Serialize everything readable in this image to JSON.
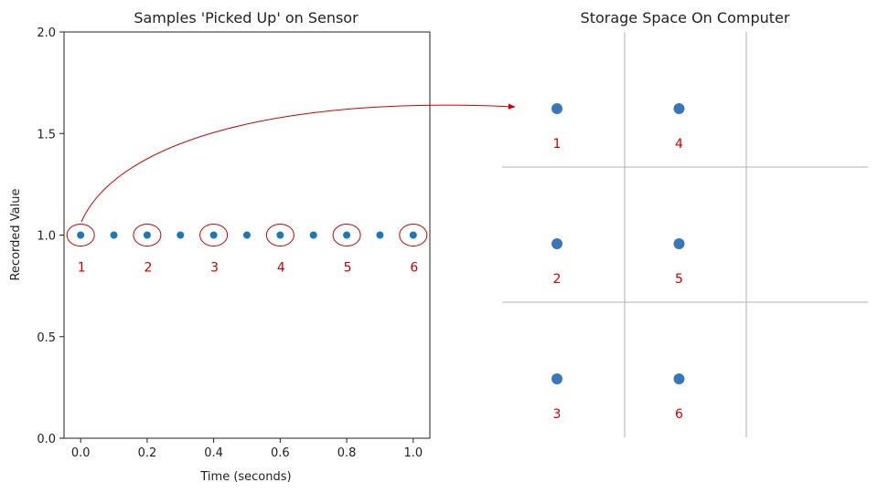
{
  "chart_data": [
    {
      "type": "scatter",
      "title": "Samples 'Picked Up' on Sensor",
      "xlabel": "Time (seconds)",
      "ylabel": "Recorded Value",
      "xlim": [
        -0.05,
        1.05
      ],
      "ylim": [
        0.0,
        2.0
      ],
      "x_ticks": [
        "0.0",
        "0.2",
        "0.4",
        "0.6",
        "0.8",
        "1.0"
      ],
      "y_ticks": [
        "0.0",
        "0.5",
        "1.0",
        "1.5",
        "2.0"
      ],
      "grid": false,
      "series": [
        {
          "x": [
            0.0,
            0.1,
            0.2,
            0.3,
            0.4,
            0.5,
            0.6,
            0.7,
            0.8,
            0.9,
            1.0
          ],
          "y": [
            1.0,
            1.0,
            1.0,
            1.0,
            1.0,
            1.0,
            1.0,
            1.0,
            1.0,
            1.0,
            1.0
          ],
          "color": "#1f77b4"
        }
      ],
      "annotations": [
        {
          "label": "1",
          "x": 0.0,
          "y": 1.0
        },
        {
          "label": "2",
          "x": 0.2,
          "y": 1.0
        },
        {
          "label": "3",
          "x": 0.4,
          "y": 1.0
        },
        {
          "label": "4",
          "x": 0.6,
          "y": 1.0
        },
        {
          "label": "5",
          "x": 0.8,
          "y": 1.0
        },
        {
          "label": "6",
          "x": 1.0,
          "y": 1.0
        }
      ],
      "annotation_color": "#cc0000"
    },
    {
      "type": "grid-diagram",
      "title": "Storage Space On Computer",
      "rows": 3,
      "columns": 3,
      "cells": [
        {
          "label": "1",
          "row": 0,
          "col": 0
        },
        {
          "label": "4",
          "row": 0,
          "col": 1
        },
        {
          "label": "2",
          "row": 1,
          "col": 0
        },
        {
          "label": "5",
          "row": 1,
          "col": 1
        },
        {
          "label": "3",
          "row": 2,
          "col": 0
        },
        {
          "label": "6",
          "row": 2,
          "col": 1
        }
      ],
      "dot_color": "#3a77b8",
      "label_color": "#cc0000",
      "grid_color": "#b0b0b0"
    }
  ]
}
